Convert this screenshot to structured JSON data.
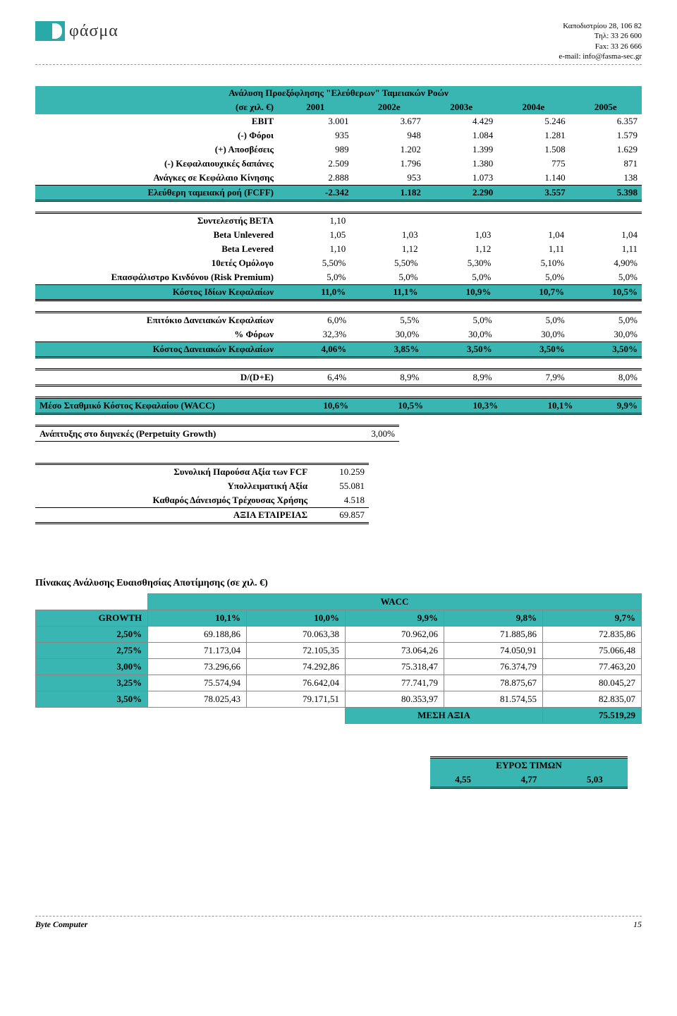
{
  "header": {
    "logo_text": "φάσμα",
    "address": "Καποδιστρίου 28, 106 82",
    "phone": "Τηλ: 33 26 600",
    "fax": "Fax: 33 26 666",
    "email": "e-mail: info@fasma-sec.gr"
  },
  "t1": {
    "title": "Ανάλυση Προεξόφλησης \"Ελεύθερων\" Ταμειακών Ροών",
    "unit": "(σε χιλ. €)",
    "years": [
      "2001",
      "2002e",
      "2003e",
      "2004e",
      "2005e"
    ],
    "rows": [
      {
        "label": "EBIT",
        "vals": [
          "3.001",
          "3.677",
          "4.429",
          "5.246",
          "6.357"
        ]
      },
      {
        "label": "(-) Φόροι",
        "vals": [
          "935",
          "948",
          "1.084",
          "1.281",
          "1.579"
        ]
      },
      {
        "label": "(+) Αποσβέσεις",
        "vals": [
          "989",
          "1.202",
          "1.399",
          "1.508",
          "1.629"
        ]
      },
      {
        "label": "(-) Κεφαλαιουχικές δαπάνες",
        "vals": [
          "2.509",
          "1.796",
          "1.380",
          "775",
          "871"
        ]
      },
      {
        "label": "Ανάγκες σε Κεφάλαιο Κίνησης",
        "vals": [
          "2.888",
          "953",
          "1.073",
          "1.140",
          "138"
        ]
      },
      {
        "label": "Ελεύθερη ταμειακή ροή (FCFF)",
        "vals": [
          "-2.342",
          "1.182",
          "2.290",
          "3.557",
          "5.398"
        ]
      }
    ]
  },
  "t2": {
    "rows": [
      {
        "label": "Συντελεστής BETA",
        "vals": [
          "1,10",
          "",
          "",
          "",
          ""
        ]
      },
      {
        "label": "Beta Unlevered",
        "vals": [
          "1,05",
          "1,03",
          "1,03",
          "1,04",
          "1,04"
        ]
      },
      {
        "label": "Beta Levered",
        "vals": [
          "1,10",
          "1,12",
          "1,12",
          "1,11",
          "1,11"
        ]
      },
      {
        "label": "10ετές Ομόλογο",
        "vals": [
          "5,50%",
          "5,50%",
          "5,30%",
          "5,10%",
          "4,90%"
        ]
      },
      {
        "label": "Επασφάλιστρο Κινδύνου (Risk Premium)",
        "vals": [
          "5,0%",
          "5,0%",
          "5,0%",
          "5,0%",
          "5,0%"
        ]
      },
      {
        "label": "Κόστος Ιδίων Κεφαλαίων",
        "vals": [
          "11,0%",
          "11,1%",
          "10,9%",
          "10,7%",
          "10,5%"
        ]
      }
    ]
  },
  "t3": {
    "rows": [
      {
        "label": "Επιτόκιο Δανειακών Κεφαλαίων",
        "vals": [
          "6,0%",
          "5,5%",
          "5,0%",
          "5,0%",
          "5,0%"
        ]
      },
      {
        "label": "% Φόρων",
        "vals": [
          "32,3%",
          "30,0%",
          "30,0%",
          "30,0%",
          "30,0%"
        ]
      },
      {
        "label": "Κόστος Δανειακών Κεφαλαίων",
        "vals": [
          "4,06%",
          "3,85%",
          "3,50%",
          "3,50%",
          "3,50%"
        ]
      }
    ]
  },
  "ratio": {
    "label": "D/(D+E)",
    "vals": [
      "6,4%",
      "8,9%",
      "8,9%",
      "7,9%",
      "8,0%"
    ]
  },
  "wacc_row": {
    "label": "Μέσο Σταθμικό Κόστος Κεφαλαίου (WACC)",
    "vals": [
      "10,6%",
      "10,5%",
      "10,3%",
      "10,1%",
      "9,9%"
    ]
  },
  "growth": {
    "label": "Ανάπτυξης στο διηνεκές (Perpetuity Growth)",
    "val": "3,00%"
  },
  "pv": {
    "rows": [
      {
        "label": "Συνολική Παρούσα Αξία των FCF",
        "val": "10.259"
      },
      {
        "label": "Υπολλειματική Αξία",
        "val": "55.081"
      },
      {
        "label": "Καθαρός Δάνεισμός Τρέχουσας Χρήσης",
        "val": "4.518"
      },
      {
        "label": "ΑΞΙΑ ΕΤΑΙΡΕΙΑΣ",
        "val": "69.857"
      }
    ]
  },
  "sens": {
    "title": "Πίνακας Ανάλυσης Ευαισθησίας Αποτίμησης (σε χιλ. €)",
    "wacc_label": "WACC",
    "growth_label": "GROWTH",
    "wacc_headers": [
      "10,1%",
      "10,0%",
      "9,9%",
      "9,8%",
      "9,7%"
    ],
    "rows": [
      {
        "g": "2,50%",
        "vals": [
          "69.188,86",
          "70.063,38",
          "70.962,06",
          "71.885,86",
          "72.835,86"
        ]
      },
      {
        "g": "2,75%",
        "vals": [
          "71.173,04",
          "72.105,35",
          "73.064,26",
          "74.050,91",
          "75.066,48"
        ]
      },
      {
        "g": "3,00%",
        "vals": [
          "73.296,66",
          "74.292,86",
          "75.318,47",
          "76.374,79",
          "77.463,20"
        ]
      },
      {
        "g": "3,25%",
        "vals": [
          "75.574,94",
          "76.642,04",
          "77.741,79",
          "78.875,67",
          "80.045,27"
        ]
      },
      {
        "g": "3,50%",
        "vals": [
          "78.025,43",
          "79.171,51",
          "80.353,97",
          "81.574,55",
          "82.835,07"
        ]
      }
    ],
    "mean_label": "ΜΕΣΗ ΑΞΙΑ",
    "mean_val": "75.519,29"
  },
  "range": {
    "title": "ΕΥΡΟΣ ΤΙΜΩΝ",
    "vals": [
      "4,55",
      "4,77",
      "5,03"
    ]
  },
  "footer": {
    "company": "Byte Computer",
    "page": "15"
  },
  "colors": {
    "teal": "#39b5b2"
  }
}
